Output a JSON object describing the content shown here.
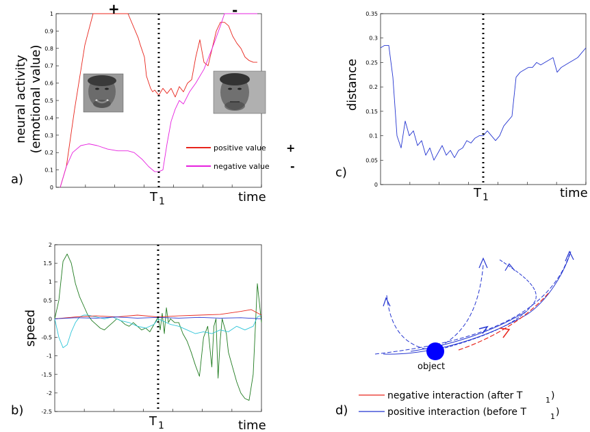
{
  "chart_data": [
    {
      "panel": "a)",
      "type": "line",
      "ylabel_lines": [
        "neural activity",
        "(emotional value)"
      ],
      "xlabel": "time",
      "marker_label": "T",
      "marker_sub": "1",
      "marker_x": 0.5,
      "ylim": [
        0,
        1
      ],
      "yticks": [
        "0",
        "0.1",
        "0.2",
        "0.3",
        "0.4",
        "0.5",
        "0.6",
        "0.7",
        "0.8",
        "0.9",
        "1"
      ],
      "top_signs": [
        "+",
        "-"
      ],
      "faces": [
        "smiling-face",
        "neutral-face"
      ],
      "legend": [
        {
          "label": "positive value",
          "sign": "+",
          "color": "#e8231a"
        },
        {
          "label": "negative value",
          "sign": "-",
          "color": "#e61fdf"
        }
      ],
      "series": [
        {
          "name": "positive value",
          "color": "#e8231a",
          "x": [
            0.02,
            0.05,
            0.09,
            0.14,
            0.18,
            0.2,
            0.23,
            0.3,
            0.35,
            0.4,
            0.41,
            0.43,
            0.44,
            0.46,
            0.47,
            0.48,
            0.5,
            0.52,
            0.54,
            0.56,
            0.58,
            0.6,
            0.62,
            0.64,
            0.66,
            0.68,
            0.7,
            0.72,
            0.74,
            0.76,
            0.78,
            0.8,
            0.82,
            0.84,
            0.86,
            0.88,
            0.9,
            0.92,
            0.94,
            0.96,
            0.98
          ],
          "y": [
            0.0,
            0.12,
            0.45,
            0.82,
            1.0,
            1.0,
            1.0,
            1.0,
            1.0,
            0.86,
            0.82,
            0.75,
            0.64,
            0.57,
            0.55,
            0.56,
            0.53,
            0.57,
            0.54,
            0.57,
            0.52,
            0.58,
            0.55,
            0.6,
            0.62,
            0.75,
            0.85,
            0.72,
            0.7,
            0.8,
            0.9,
            0.95,
            0.95,
            0.93,
            0.87,
            0.83,
            0.8,
            0.75,
            0.73,
            0.72,
            0.72
          ]
        },
        {
          "name": "negative value",
          "color": "#e61fdf",
          "x": [
            0.02,
            0.05,
            0.08,
            0.12,
            0.16,
            0.2,
            0.25,
            0.3,
            0.35,
            0.38,
            0.42,
            0.45,
            0.47,
            0.48,
            0.5,
            0.52,
            0.54,
            0.56,
            0.58,
            0.6,
            0.62,
            0.65,
            0.68,
            0.72,
            0.76,
            0.8,
            0.82,
            0.84,
            0.88,
            0.92,
            0.96,
            0.98
          ],
          "y": [
            0.0,
            0.12,
            0.2,
            0.24,
            0.25,
            0.24,
            0.22,
            0.21,
            0.21,
            0.2,
            0.16,
            0.12,
            0.1,
            0.09,
            0.09,
            0.1,
            0.25,
            0.38,
            0.45,
            0.5,
            0.48,
            0.55,
            0.6,
            0.68,
            0.8,
            0.93,
            1.0,
            1.0,
            1.0,
            1.0,
            1.0,
            1.0
          ]
        }
      ]
    },
    {
      "panel": "b)",
      "type": "line",
      "ylabel": "speed",
      "xlabel": "time",
      "marker_label": "T",
      "marker_sub": "1",
      "marker_x": 0.5,
      "ylim": [
        -2.5,
        2
      ],
      "yticks": [
        "-2.5",
        "-2",
        "-1.5",
        "-1",
        "-0.5",
        "0",
        "0.5",
        "1",
        "1.5",
        "2"
      ],
      "series": [
        {
          "color": "#1e7a1e",
          "x": [
            0,
            0.02,
            0.04,
            0.06,
            0.08,
            0.1,
            0.12,
            0.14,
            0.16,
            0.18,
            0.2,
            0.22,
            0.24,
            0.26,
            0.28,
            0.3,
            0.32,
            0.34,
            0.36,
            0.38,
            0.4,
            0.42,
            0.44,
            0.46,
            0.48,
            0.5,
            0.51,
            0.52,
            0.53,
            0.54,
            0.55,
            0.56,
            0.58,
            0.6,
            0.62,
            0.64,
            0.66,
            0.68,
            0.7,
            0.72,
            0.74,
            0.76,
            0.77,
            0.78,
            0.79,
            0.8,
            0.81,
            0.82,
            0.83,
            0.84,
            0.86,
            0.88,
            0.9,
            0.92,
            0.94,
            0.96,
            0.98,
            1.0
          ],
          "y": [
            0.0,
            0.5,
            1.55,
            1.75,
            1.5,
            0.95,
            0.6,
            0.35,
            0.1,
            -0.05,
            -0.15,
            -0.25,
            -0.3,
            -0.2,
            -0.1,
            0.0,
            -0.05,
            -0.15,
            -0.2,
            -0.1,
            -0.2,
            -0.3,
            -0.25,
            -0.35,
            -0.15,
            0.05,
            -0.3,
            0.15,
            -0.4,
            0.3,
            -0.1,
            0.0,
            -0.1,
            -0.1,
            -0.4,
            -0.6,
            -0.9,
            -1.25,
            -1.55,
            -0.5,
            -0.2,
            -1.3,
            -0.2,
            0.0,
            -1.6,
            -0.6,
            0.0,
            -0.2,
            -0.4,
            -0.9,
            -1.3,
            -1.7,
            -2.0,
            -2.15,
            -2.2,
            -1.5,
            0.95,
            -0.1
          ]
        },
        {
          "color": "#2cc4d8",
          "x": [
            0,
            0.02,
            0.04,
            0.06,
            0.08,
            0.1,
            0.12,
            0.14,
            0.16,
            0.2,
            0.24,
            0.28,
            0.32,
            0.36,
            0.4,
            0.44,
            0.48,
            0.5,
            0.52,
            0.56,
            0.6,
            0.64,
            0.68,
            0.72,
            0.76,
            0.8,
            0.84,
            0.88,
            0.92,
            0.96,
            0.98,
            1.0
          ],
          "y": [
            0.0,
            -0.5,
            -0.78,
            -0.7,
            -0.35,
            -0.1,
            0.05,
            0.1,
            0.1,
            0.05,
            0.0,
            0.05,
            -0.05,
            -0.1,
            -0.2,
            -0.25,
            -0.15,
            0.0,
            -0.05,
            -0.15,
            -0.2,
            -0.3,
            -0.4,
            -0.35,
            -0.4,
            -0.3,
            -0.35,
            -0.2,
            -0.3,
            -0.2,
            0.05,
            0.1
          ]
        },
        {
          "color": "#e8231a",
          "x": [
            0,
            0.1,
            0.2,
            0.3,
            0.4,
            0.5,
            0.6,
            0.7,
            0.8,
            0.9,
            0.95,
            1.0
          ],
          "y": [
            0.0,
            0.05,
            0.08,
            0.05,
            0.1,
            0.05,
            0.08,
            0.1,
            0.12,
            0.2,
            0.25,
            0.1
          ]
        },
        {
          "color": "#2233d0",
          "x": [
            0,
            0.1,
            0.2,
            0.3,
            0.4,
            0.5,
            0.6,
            0.7,
            0.8,
            0.9,
            1.0
          ],
          "y": [
            0.0,
            0.03,
            0.02,
            0.05,
            0.02,
            0.04,
            0.02,
            0.04,
            0.02,
            0.03,
            0.0
          ]
        }
      ]
    },
    {
      "panel": "c)",
      "type": "line",
      "ylabel": "distance",
      "xlabel": "time",
      "marker_label": "T",
      "marker_sub": "1",
      "marker_x": 0.53,
      "ylim": [
        0,
        0.35
      ],
      "yticks": [
        "0",
        "0.05",
        "0.1",
        "0.15",
        "0.2",
        "0.25",
        "0.3",
        "0.35"
      ],
      "series": [
        {
          "color": "#2233d0",
          "x": [
            0,
            0.02,
            0.04,
            0.06,
            0.08,
            0.1,
            0.12,
            0.14,
            0.16,
            0.18,
            0.2,
            0.22,
            0.24,
            0.26,
            0.28,
            0.3,
            0.32,
            0.34,
            0.36,
            0.38,
            0.4,
            0.42,
            0.44,
            0.46,
            0.48,
            0.5,
            0.52,
            0.54,
            0.56,
            0.58,
            0.6,
            0.62,
            0.64,
            0.66,
            0.68,
            0.7,
            0.72,
            0.74,
            0.76,
            0.78,
            0.8,
            0.82,
            0.84,
            0.86,
            0.88,
            0.9,
            0.92,
            0.94,
            0.96,
            0.98,
            1.0
          ],
          "y": [
            0.28,
            0.285,
            0.285,
            0.22,
            0.1,
            0.075,
            0.13,
            0.1,
            0.11,
            0.08,
            0.09,
            0.06,
            0.075,
            0.05,
            0.065,
            0.08,
            0.06,
            0.07,
            0.055,
            0.07,
            0.075,
            0.09,
            0.085,
            0.095,
            0.1,
            0.1,
            0.11,
            0.1,
            0.09,
            0.1,
            0.12,
            0.13,
            0.14,
            0.22,
            0.23,
            0.235,
            0.24,
            0.24,
            0.25,
            0.245,
            0.25,
            0.255,
            0.26,
            0.23,
            0.24,
            0.245,
            0.25,
            0.255,
            0.26,
            0.27,
            0.28
          ]
        }
      ]
    }
  ],
  "panel_d": {
    "label": "d)",
    "object_label": "object",
    "legend": [
      {
        "label": "negative interaction (after T",
        "sub": "1",
        "close": ")",
        "color": "#e8231a"
      },
      {
        "label": "positive interaction (before T",
        "sub": "1",
        "close": ")",
        "color": "#2233d0"
      }
    ]
  }
}
